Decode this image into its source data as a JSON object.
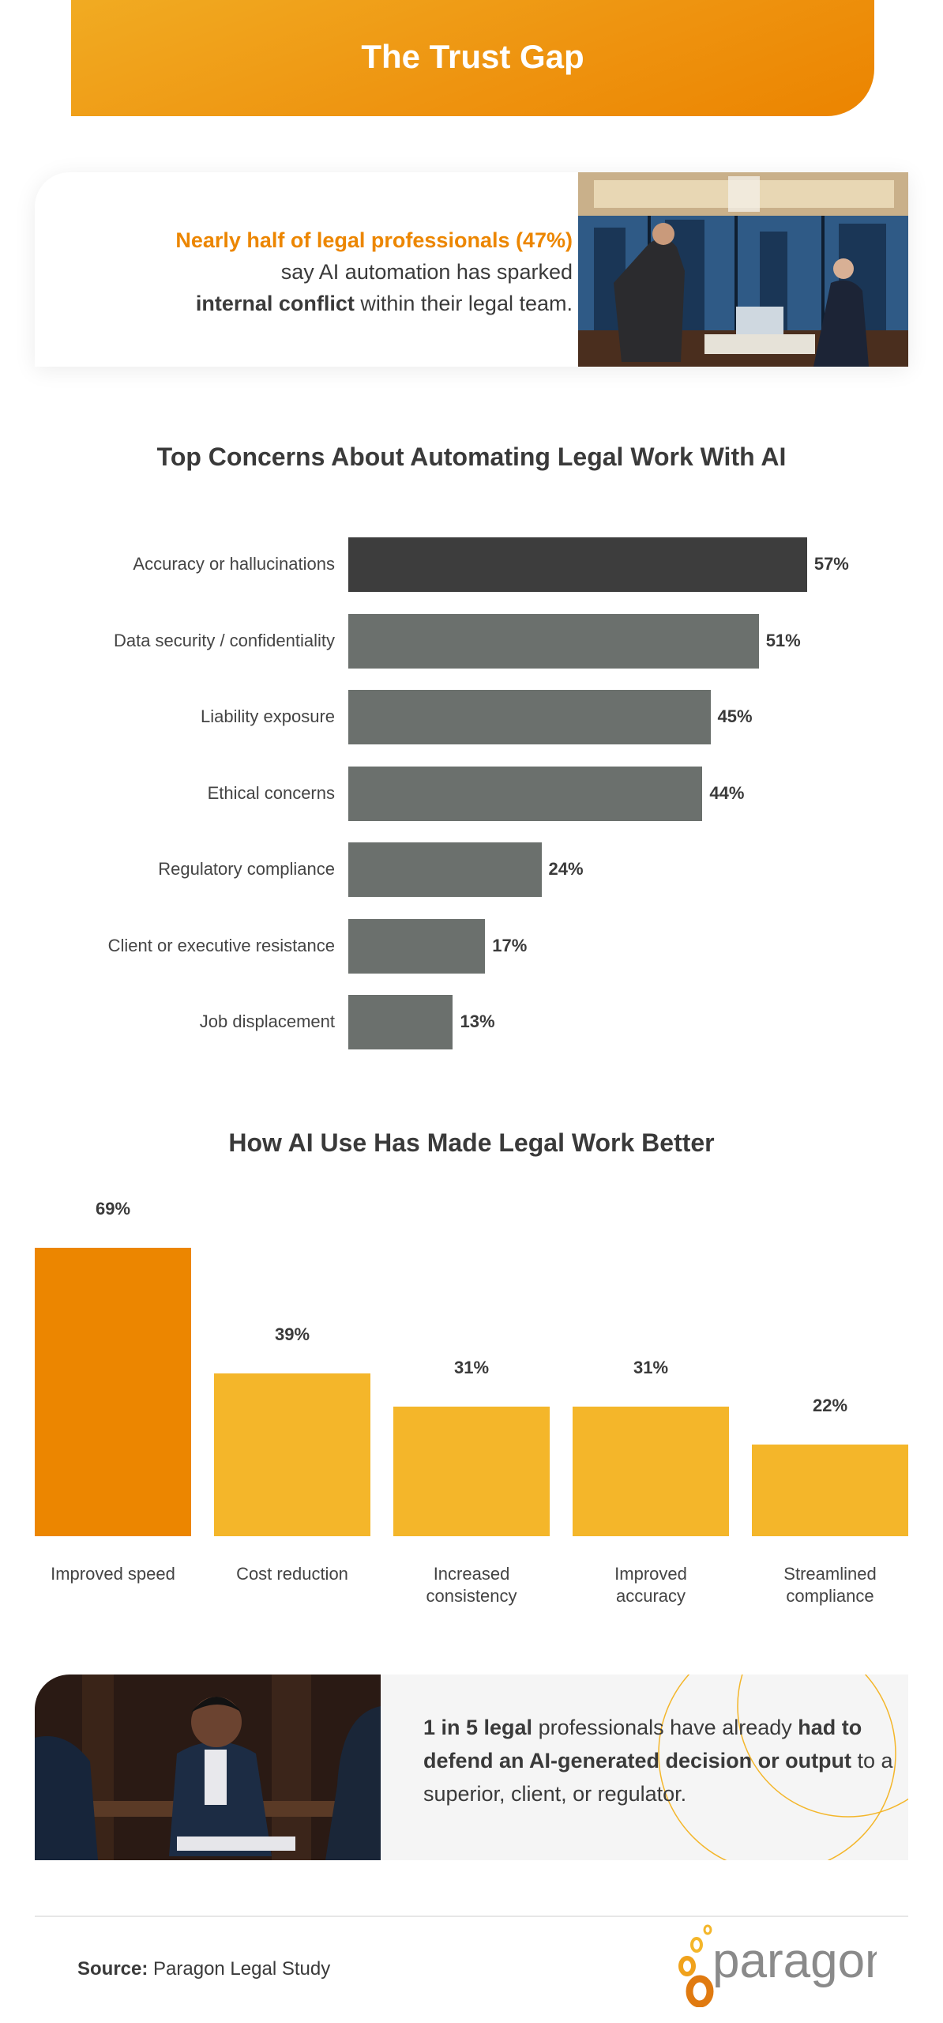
{
  "header": {
    "title": "The Trust Gap"
  },
  "card1": {
    "highlight": "Nearly half of legal professionals (47%)",
    "line2": "say AI automation has sparked",
    "line3_bold": "internal conflict",
    "line3_rest": " within their legal team."
  },
  "card2": {
    "p1_bold": "1 in 5 legal",
    "p1_rest": " professionals have already ",
    "p2_bold": "had to defend an AI-generated decision or output",
    "p2_rest": " to a superior, client, or regulator."
  },
  "footer": {
    "source_label": "Source:",
    "source_value": " Paragon Legal Study",
    "logo_text": "paragon"
  },
  "colors": {
    "orange": "#ec8600",
    "yellow": "#f4b62a",
    "dark_bar": "#3d3d3d",
    "gray_bar": "#6b706d"
  },
  "chart_data": [
    {
      "type": "bar",
      "orientation": "horizontal",
      "title": "Top Concerns About Automating Legal Work With AI",
      "categories": [
        "Accuracy or hallucinations",
        "Data security / confidentiality",
        "Liability exposure",
        "Ethical concerns",
        "Regulatory compliance",
        "Client or executive resistance",
        "Job displacement"
      ],
      "values": [
        57,
        51,
        45,
        44,
        24,
        17,
        13
      ],
      "labels": [
        "57%",
        "51%",
        "45%",
        "44%",
        "24%",
        "17%",
        "13%"
      ],
      "highlight_index": 0,
      "grid": false
    },
    {
      "type": "bar",
      "orientation": "vertical",
      "title": "How AI Use Has Made Legal Work Better",
      "categories": [
        [
          "Improved speed"
        ],
        [
          "Cost reduction"
        ],
        [
          "Increased",
          "consistency"
        ],
        [
          "Improved",
          "accuracy"
        ],
        [
          "Streamlined",
          "compliance"
        ]
      ],
      "values": [
        69,
        39,
        31,
        31,
        22
      ],
      "labels": [
        "69%",
        "39%",
        "31%",
        "31%",
        "22%"
      ],
      "highlight_index": 0,
      "grid": false
    }
  ]
}
